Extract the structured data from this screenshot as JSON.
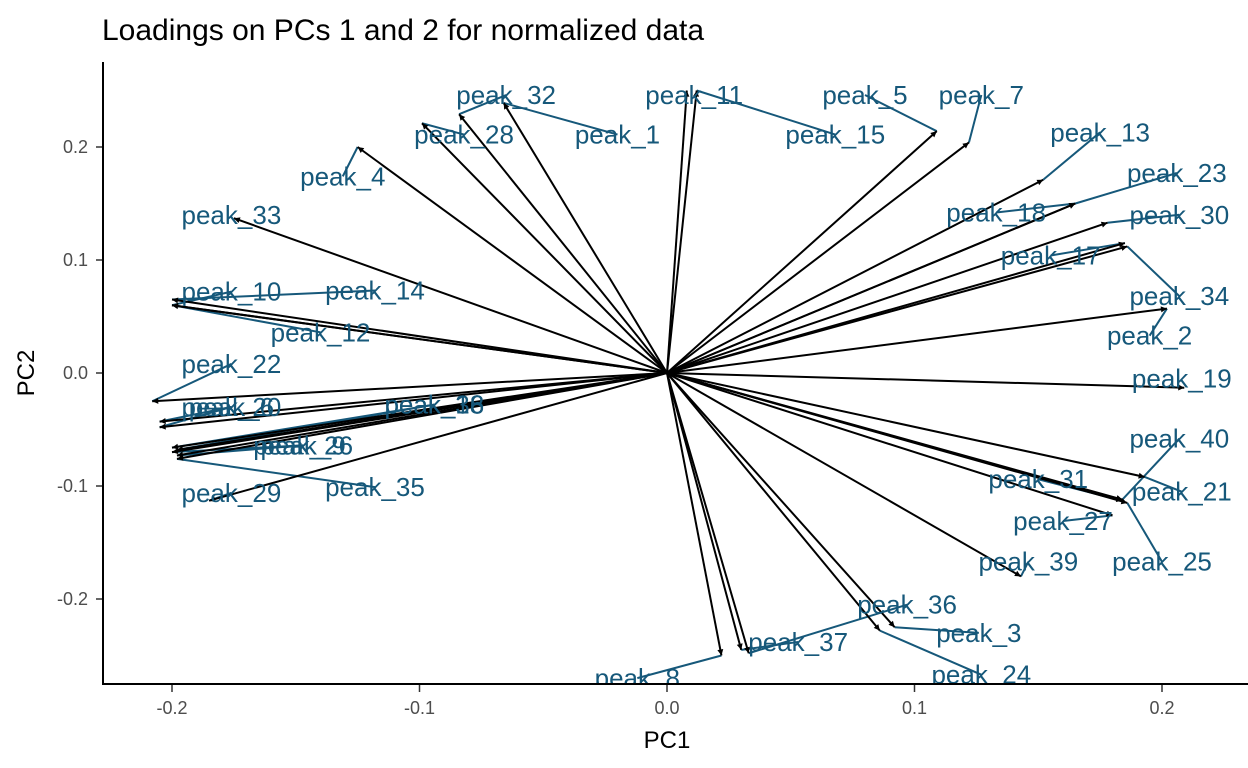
{
  "chart_data": {
    "type": "scatter",
    "title": "Loadings on PCs 1 and 2 for normalized data",
    "xlabel": "PC1",
    "ylabel": "PC2",
    "xlim": [
      -0.23,
      0.23
    ],
    "ylim": [
      -0.275,
      0.275
    ],
    "xticks": [
      -0.2,
      -0.1,
      0.0,
      0.1,
      0.2
    ],
    "xtick_labels": [
      "-0.2",
      "-0.1",
      "0.0",
      "0.1",
      "0.2"
    ],
    "yticks": [
      -0.2,
      -0.1,
      0.0,
      0.1,
      0.2
    ],
    "ytick_labels": [
      "-0.2",
      "-0.1",
      "0.0",
      "0.1",
      "0.2"
    ],
    "grid": false,
    "legend": "none",
    "arrow_color": "#000000",
    "label_color": "#16587a",
    "loadings": [
      {
        "name": "peak_1",
        "x": -0.066,
        "y": 0.239,
        "lx": -0.02,
        "ly": 0.211
      },
      {
        "name": "peak_2",
        "x": 0.202,
        "y": 0.057,
        "lx": 0.195,
        "ly": 0.033
      },
      {
        "name": "peak_3",
        "x": 0.092,
        "y": -0.225,
        "lx": 0.126,
        "ly": -0.23
      },
      {
        "name": "peak_4",
        "x": -0.125,
        "y": 0.2,
        "lx": -0.131,
        "ly": 0.174
      },
      {
        "name": "peak_5",
        "x": 0.109,
        "y": 0.214,
        "lx": 0.08,
        "ly": 0.246
      },
      {
        "name": "peak_7",
        "x": 0.122,
        "y": 0.204,
        "lx": 0.127,
        "ly": 0.246
      },
      {
        "name": "peak_8",
        "x": 0.022,
        "y": -0.25,
        "lx": -0.012,
        "ly": -0.27
      },
      {
        "name": "peak_10",
        "x": -0.2,
        "y": 0.06,
        "lx": -0.176,
        "ly": 0.072
      },
      {
        "name": "peak_11",
        "x": 0.008,
        "y": 0.25,
        "lx": 0.011,
        "ly": 0.246
      },
      {
        "name": "peak_12",
        "x": -0.2,
        "y": 0.06,
        "lx": -0.14,
        "ly": 0.036
      },
      {
        "name": "peak_13",
        "x": 0.152,
        "y": 0.171,
        "lx": 0.175,
        "ly": 0.213
      },
      {
        "name": "peak_14",
        "x": -0.2,
        "y": 0.065,
        "lx": -0.118,
        "ly": 0.073
      },
      {
        "name": "peak_15",
        "x": 0.012,
        "y": 0.25,
        "lx": 0.068,
        "ly": 0.211
      },
      {
        "name": "peak_17",
        "x": 0.185,
        "y": 0.115,
        "lx": 0.155,
        "ly": 0.104
      },
      {
        "name": "peak_18",
        "x": 0.165,
        "y": 0.15,
        "lx": 0.133,
        "ly": 0.142
      },
      {
        "name": "peak_19",
        "x": 0.209,
        "y": -0.013,
        "lx": 0.208,
        "ly": -0.005
      },
      {
        "name": "peak_20",
        "x": -0.205,
        "y": -0.048,
        "lx": -0.176,
        "ly": -0.03
      },
      {
        "name": "peak_21",
        "x": 0.193,
        "y": -0.092,
        "lx": 0.208,
        "ly": -0.105
      },
      {
        "name": "peak_22",
        "x": -0.208,
        "y": -0.025,
        "lx": -0.176,
        "ly": 0.008
      },
      {
        "name": "peak_23",
        "x": 0.165,
        "y": 0.15,
        "lx": 0.206,
        "ly": 0.177
      },
      {
        "name": "peak_24",
        "x": 0.086,
        "y": -0.228,
        "lx": 0.127,
        "ly": -0.267
      },
      {
        "name": "peak_25",
        "x": 0.186,
        "y": -0.115,
        "lx": 0.2,
        "ly": -0.167
      },
      {
        "name": "peak_26",
        "x": -0.2,
        "y": -0.07,
        "lx": -0.147,
        "ly": -0.064
      },
      {
        "name": "peak_27",
        "x": 0.18,
        "y": -0.126,
        "lx": 0.16,
        "ly": -0.131
      },
      {
        "name": "peak_29",
        "x": -0.185,
        "y": -0.113,
        "lx": -0.176,
        "ly": -0.106
      },
      {
        "name": "peak_28",
        "x": -0.099,
        "y": 0.221,
        "lx": -0.082,
        "ly": 0.211
      },
      {
        "name": "peak_31",
        "x": 0.184,
        "y": -0.113,
        "lx": 0.15,
        "ly": -0.094
      },
      {
        "name": "peak_32",
        "x": -0.084,
        "y": 0.229,
        "lx": -0.065,
        "ly": 0.246
      },
      {
        "name": "peak_33",
        "x": -0.175,
        "y": 0.137,
        "lx": -0.176,
        "ly": 0.14
      },
      {
        "name": "peak_35",
        "x": -0.198,
        "y": -0.076,
        "lx": -0.118,
        "ly": -0.101
      },
      {
        "name": "peak_36",
        "x": 0.033,
        "y": -0.248,
        "lx": 0.097,
        "ly": -0.205
      },
      {
        "name": "peak_37",
        "x": 0.03,
        "y": -0.245,
        "lx": 0.053,
        "ly": -0.238
      },
      {
        "name": "peak_38",
        "x": -0.198,
        "y": -0.068,
        "lx": -0.094,
        "ly": -0.028
      },
      {
        "name": "peak_39",
        "x": 0.143,
        "y": -0.18,
        "lx": 0.146,
        "ly": -0.167
      },
      {
        "name": "peak_6",
        "x": -0.205,
        "y": -0.043,
        "lx": -0.176,
        "ly": -0.03
      },
      {
        "name": "peak_9",
        "x": -0.198,
        "y": -0.073,
        "lx": -0.147,
        "ly": -0.064
      },
      {
        "name": "peak_16",
        "x": -0.2,
        "y": -0.066,
        "lx": -0.094,
        "ly": -0.028
      },
      {
        "name": "peak_30",
        "x": 0.178,
        "y": 0.133,
        "lx": 0.207,
        "ly": 0.14
      },
      {
        "name": "peak_34",
        "x": 0.186,
        "y": 0.112,
        "lx": 0.207,
        "ly": 0.068
      },
      {
        "name": "peak_40",
        "x": 0.184,
        "y": -0.112,
        "lx": 0.207,
        "ly": -0.058
      }
    ]
  }
}
